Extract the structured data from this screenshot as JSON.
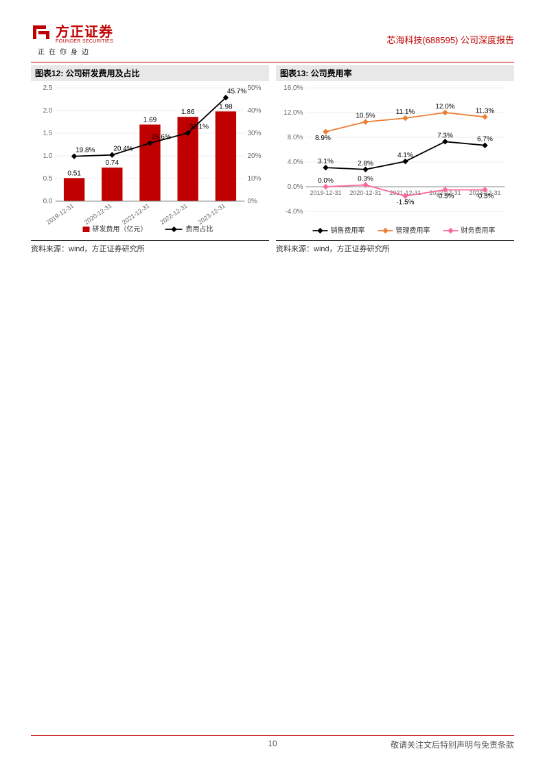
{
  "header": {
    "logo_main": "方正证券",
    "logo_sub": "FOUNDER SECURITIES",
    "tagline": "正在你身边",
    "right_text": "芯海科技(688595) 公司深度报告"
  },
  "chart12": {
    "title": "图表12: 公司研发费用及占比",
    "source": "资料来源：wind，方正证券研究所",
    "categories": [
      "2019-12-31",
      "2020-12-31",
      "2021-12-31",
      "2022-12-31",
      "2023-12-31"
    ],
    "bar_values": [
      0.51,
      0.74,
      1.69,
      1.86,
      1.98
    ],
    "bar_labels": [
      "0.51",
      "0.74",
      "1.69",
      "1.86",
      "1.98"
    ],
    "line_values": [
      19.8,
      20.4,
      25.6,
      30.1,
      45.7
    ],
    "line_labels": [
      "19.8%",
      "20.4%",
      "25.6%",
      "30.1%",
      "45.7%"
    ],
    "left_axis": {
      "min": 0.0,
      "max": 2.5,
      "step": 0.5,
      "ticks": [
        "0.0",
        "0.5",
        "1.0",
        "1.5",
        "2.0",
        "2.5"
      ]
    },
    "right_axis": {
      "min": 0,
      "max": 50,
      "step": 10,
      "ticks": [
        "0%",
        "10%",
        "20%",
        "30%",
        "40%",
        "50%"
      ]
    },
    "bar_color": "#c00000",
    "line_color": "#000000",
    "legend": {
      "bar": "研发费用（亿元）",
      "line": "费用占比"
    }
  },
  "chart13": {
    "title": "图表13: 公司费用率",
    "source": "资料来源：wind，方正证券研究所",
    "categories": [
      "2019-12-31",
      "2020-12-31",
      "2021-12-31",
      "2022-12-31",
      "2023-12-31"
    ],
    "series": [
      {
        "name": "销售费用率",
        "color": "#000000",
        "values": [
          3.1,
          2.8,
          4.1,
          7.3,
          6.7
        ],
        "labels": [
          "3.1%",
          "2.8%",
          "4.1%",
          "7.3%",
          "6.7%"
        ]
      },
      {
        "name": "管理费用率",
        "color": "#ed7d31",
        "values": [
          8.9,
          10.5,
          11.1,
          12.0,
          11.3
        ],
        "labels": [
          "8.9%",
          "10.5%",
          "11.1%",
          "12.0%",
          "11.3%"
        ]
      },
      {
        "name": "财务费用率",
        "color": "#ff6699",
        "values": [
          0.0,
          0.3,
          -1.5,
          -0.5,
          -0.5
        ],
        "labels": [
          "0.0%",
          "0.3%",
          "-1.5%",
          "-0.5%",
          "-0.5%"
        ]
      }
    ],
    "y_axis": {
      "min": -4.0,
      "max": 16.0,
      "step": 4.0,
      "ticks": [
        "-4.0%",
        "0.0%",
        "4.0%",
        "8.0%",
        "12.0%",
        "16.0%"
      ]
    }
  },
  "footer": {
    "page_number": "10",
    "disclaimer": "敬请关注文后特别声明与免责条款"
  }
}
